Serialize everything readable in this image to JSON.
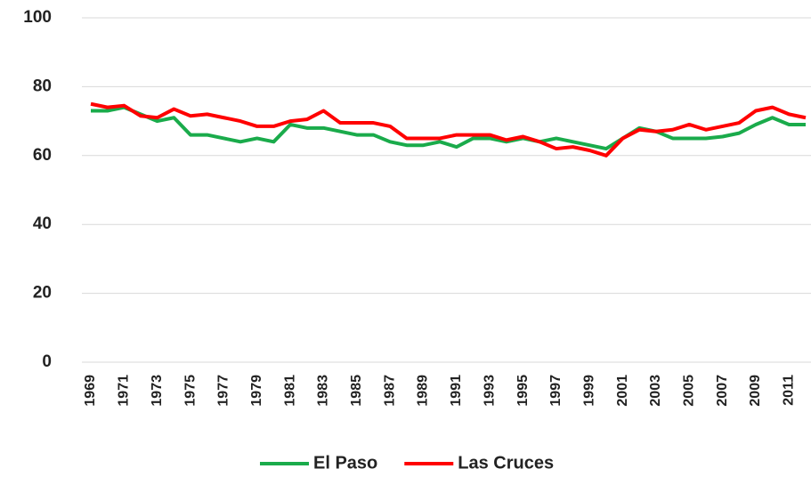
{
  "chart_data": {
    "type": "line",
    "categories": [
      "1969",
      null,
      "1971",
      null,
      "1973",
      null,
      "1975",
      null,
      "1977",
      null,
      "1979",
      null,
      "1981",
      null,
      "1983",
      null,
      "1985",
      null,
      "1987",
      null,
      "1989",
      null,
      "1991",
      null,
      "1993",
      null,
      "1995",
      null,
      "1997",
      null,
      "1999",
      null,
      "2001",
      null,
      "2003",
      null,
      "2005",
      null,
      "2007",
      null,
      "2009",
      null,
      "2011",
      null
    ],
    "series": [
      {
        "name": "El Paso",
        "color": "#1aab4b",
        "values": [
          73,
          73,
          74,
          72,
          70,
          71,
          66,
          66,
          65,
          64,
          65,
          64,
          69,
          68,
          68,
          67,
          66,
          66,
          64,
          63,
          63,
          64,
          62.5,
          65,
          65,
          64,
          65,
          64,
          65,
          64,
          63,
          62,
          65,
          68,
          67,
          65,
          65,
          65,
          65.5,
          66.5,
          69,
          71,
          69,
          69
        ]
      },
      {
        "name": "Las Cruces",
        "color": "#ff0000",
        "values": [
          75,
          74,
          74.5,
          71.5,
          71,
          73.5,
          71.5,
          72,
          71,
          70,
          68.5,
          68.5,
          70,
          70.5,
          73,
          69.5,
          69.5,
          69.5,
          68.5,
          65,
          65,
          65,
          66,
          66,
          66,
          64.5,
          65.5,
          64,
          62,
          62.5,
          61.5,
          60,
          65,
          67.5,
          67,
          67.5,
          69,
          67.5,
          68.5,
          69.5,
          73,
          74,
          72,
          71
        ]
      }
    ],
    "ylim": [
      0,
      100
    ],
    "yticks": [
      0,
      20,
      40,
      60,
      80,
      100
    ],
    "grid": true,
    "legend": "bottom"
  }
}
